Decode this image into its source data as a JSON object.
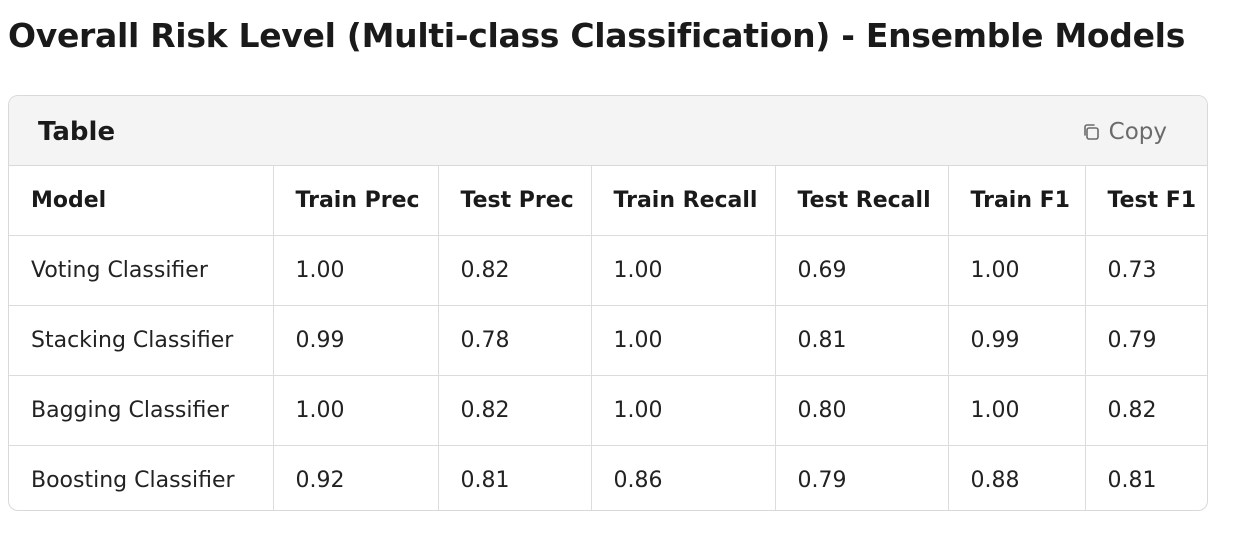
{
  "page": {
    "title": "Overall Risk Level (Multi-class Classification) - Ensemble Models"
  },
  "card": {
    "title": "Table",
    "copy_label": "Copy",
    "copy_icon": "copy-icon"
  },
  "table": {
    "headers": [
      "Model",
      "Train Prec",
      "Test Prec",
      "Train Recall",
      "Test Recall",
      "Train F1",
      "Test F1"
    ],
    "rows": [
      [
        "Voting Classifier",
        "1.00",
        "0.82",
        "1.00",
        "0.69",
        "1.00",
        "0.73"
      ],
      [
        "Stacking Classifier",
        "0.99",
        "0.78",
        "1.00",
        "0.81",
        "0.99",
        "0.79"
      ],
      [
        "Bagging Classifier",
        "1.00",
        "0.82",
        "1.00",
        "0.80",
        "1.00",
        "0.82"
      ],
      [
        "Boosting Classifier",
        "0.92",
        "0.81",
        "0.86",
        "0.79",
        "0.88",
        "0.81"
      ]
    ]
  }
}
